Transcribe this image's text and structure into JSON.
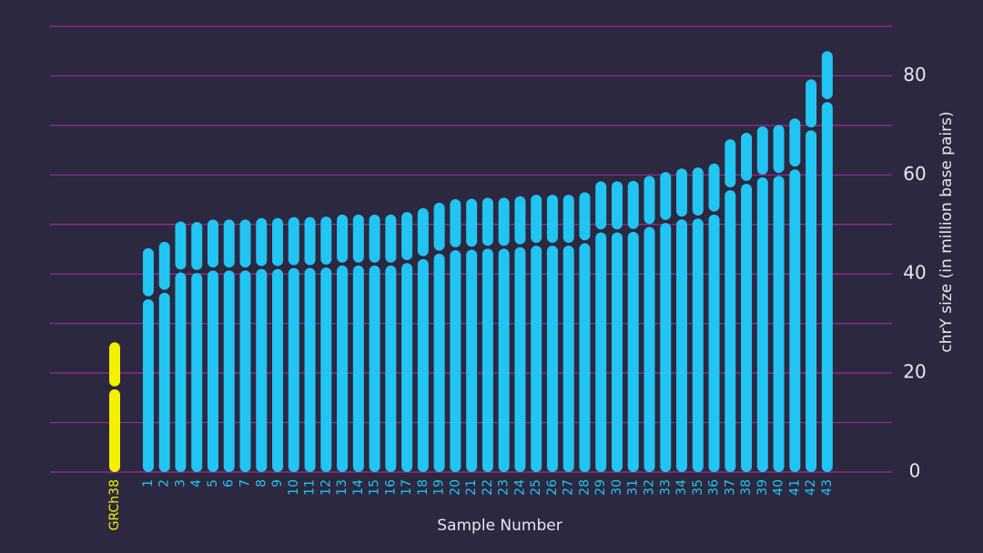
{
  "chart_data": {
    "type": "stacked_bar",
    "y_axis_label": "chrY size (in million base pairs)",
    "x_axis_label": "Sample Number",
    "categories": [
      "GRCh38",
      "1",
      "2",
      "3",
      "4",
      "5",
      "6",
      "7",
      "8",
      "9",
      "10",
      "11",
      "12",
      "13",
      "14",
      "15",
      "16",
      "17",
      "18",
      "19",
      "20",
      "21",
      "22",
      "23",
      "24",
      "25",
      "26",
      "27",
      "28",
      "29",
      "30",
      "31",
      "32",
      "33",
      "34",
      "35",
      "36",
      "37",
      "38",
      "39",
      "40",
      "41",
      "42",
      "43"
    ],
    "colors": [
      "#f5f000",
      "#22c4f2",
      "#22c4f2",
      "#22c4f2",
      "#22c4f2",
      "#22c4f2",
      "#22c4f2",
      "#22c4f2",
      "#22c4f2",
      "#22c4f2",
      "#22c4f2",
      "#22c4f2",
      "#22c4f2",
      "#22c4f2",
      "#22c4f2",
      "#22c4f2",
      "#22c4f2",
      "#22c4f2",
      "#22c4f2",
      "#22c4f2",
      "#22c4f2",
      "#22c4f2",
      "#22c4f2",
      "#22c4f2",
      "#22c4f2",
      "#22c4f2",
      "#22c4f2",
      "#22c4f2",
      "#22c4f2",
      "#22c4f2",
      "#22c4f2",
      "#22c4f2",
      "#22c4f2",
      "#22c4f2",
      "#22c4f2",
      "#22c4f2",
      "#22c4f2",
      "#22c4f2",
      "#22c4f2",
      "#22c4f2",
      "#22c4f2",
      "#22c4f2",
      "#22c4f2",
      "#22c4f2"
    ],
    "series": [
      {
        "values": [
          17,
          35.2,
          36.5,
          40.6,
          40.5,
          41,
          41,
          41,
          41.3,
          41.3,
          41.5,
          41.5,
          41.6,
          42,
          42,
          42,
          42,
          42.5,
          43.3,
          44.4,
          45.1,
          45.2,
          45.4,
          45.4,
          45.7,
          46,
          46,
          46,
          46.5,
          48.7,
          48.7,
          48.8,
          49.8,
          50.6,
          51.3,
          51.5,
          52.3,
          57.2,
          58.5,
          59.8,
          60.1,
          61.4,
          69.3,
          75
        ]
      },
      {
        "values": [
          9.2,
          10,
          10,
          10,
          10,
          10,
          10,
          10,
          10,
          10,
          10,
          10,
          10,
          10,
          10,
          10,
          10,
          10,
          10,
          10,
          10,
          10,
          10,
          10,
          10,
          10,
          10,
          10,
          10,
          10,
          10,
          10,
          10,
          10,
          10,
          10,
          10,
          10,
          10,
          10,
          10,
          10,
          10,
          10
        ]
      }
    ],
    "ylim": [
      0,
      90
    ],
    "yticks": [
      0,
      20,
      40,
      60,
      80
    ],
    "minor_yticks": [
      10,
      30,
      50,
      70,
      90
    ],
    "grid": true,
    "grid_color": "#a02a9c",
    "axis_side": "right"
  }
}
